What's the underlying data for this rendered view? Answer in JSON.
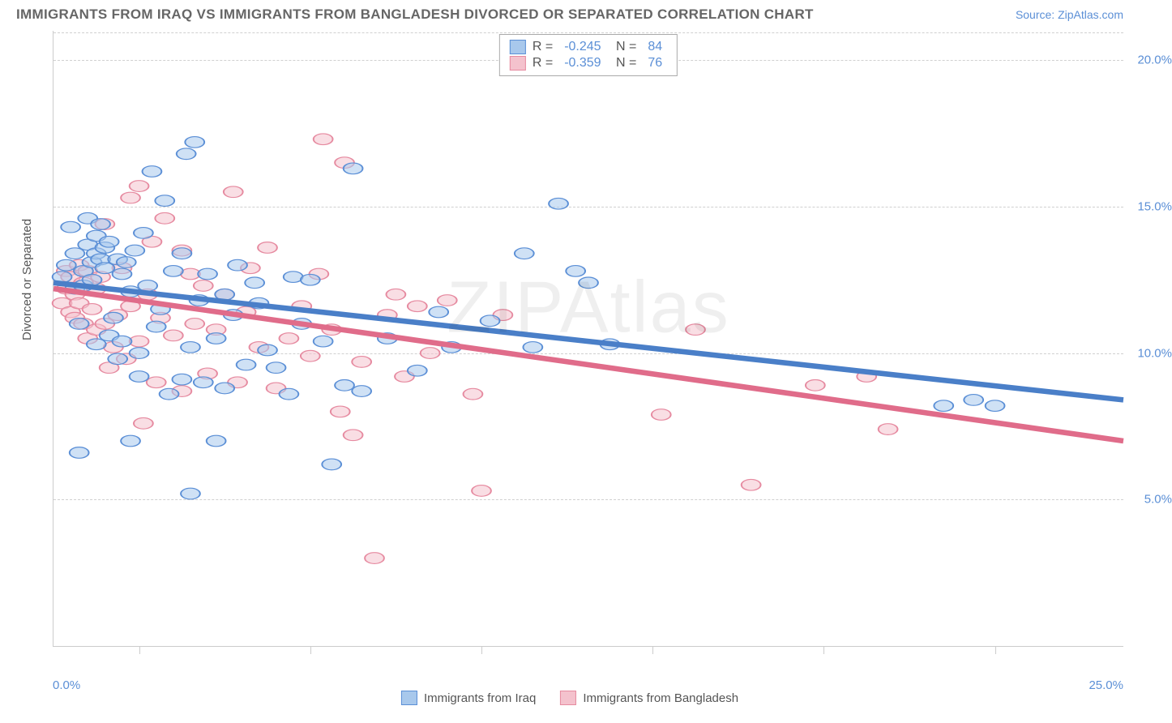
{
  "title": "IMMIGRANTS FROM IRAQ VS IMMIGRANTS FROM BANGLADESH DIVORCED OR SEPARATED CORRELATION CHART",
  "source": "Source: ZipAtlas.com",
  "ylabel": "Divorced or Separated",
  "watermark": "ZIPAtlas",
  "chart": {
    "type": "scatter",
    "xlim": [
      0,
      25
    ],
    "ylim": [
      0,
      21
    ],
    "x_axis_label_left": "0.0%",
    "x_axis_label_right": "25.0%",
    "yticks": [
      5,
      10,
      15,
      20
    ],
    "ytick_labels": [
      "5.0%",
      "10.0%",
      "15.0%",
      "20.0%"
    ],
    "xtick_positions": [
      0.08,
      0.24,
      0.4,
      0.56,
      0.72,
      0.88
    ],
    "background_color": "#ffffff",
    "grid_color": "#d0d0d0",
    "axis_color": "#cccccc",
    "marker_radius": 9,
    "marker_opacity": 0.55,
    "line_width": 2.2,
    "series": [
      {
        "name": "Immigrants from Iraq",
        "R": "-0.245",
        "N": "84",
        "fill_color": "#a8c8ec",
        "stroke_color": "#5b8fd6",
        "line_color": "#4a7fc8",
        "trend": {
          "x1": 0,
          "y1": 12.4,
          "x2": 25,
          "y2": 8.4
        },
        "points": [
          [
            0.2,
            12.6
          ],
          [
            0.3,
            13.0
          ],
          [
            0.4,
            14.3
          ],
          [
            0.5,
            12.2
          ],
          [
            0.5,
            13.4
          ],
          [
            0.6,
            6.6
          ],
          [
            0.6,
            11.0
          ],
          [
            0.7,
            12.8
          ],
          [
            0.7,
            12.3
          ],
          [
            0.8,
            14.6
          ],
          [
            0.8,
            13.7
          ],
          [
            0.9,
            12.5
          ],
          [
            0.9,
            13.1
          ],
          [
            1.0,
            13.4
          ],
          [
            1.0,
            14.0
          ],
          [
            1.0,
            10.3
          ],
          [
            1.1,
            13.2
          ],
          [
            1.1,
            14.4
          ],
          [
            1.2,
            12.9
          ],
          [
            1.2,
            13.6
          ],
          [
            1.3,
            10.6
          ],
          [
            1.3,
            13.8
          ],
          [
            1.4,
            11.2
          ],
          [
            1.5,
            13.2
          ],
          [
            1.5,
            9.8
          ],
          [
            1.6,
            12.7
          ],
          [
            1.6,
            10.4
          ],
          [
            1.7,
            13.1
          ],
          [
            1.8,
            7.0
          ],
          [
            1.8,
            12.1
          ],
          [
            1.9,
            13.5
          ],
          [
            2.0,
            10.0
          ],
          [
            2.0,
            9.2
          ],
          [
            2.1,
            14.1
          ],
          [
            2.2,
            12.3
          ],
          [
            2.3,
            16.2
          ],
          [
            2.4,
            10.9
          ],
          [
            2.5,
            11.5
          ],
          [
            2.6,
            15.2
          ],
          [
            2.7,
            8.6
          ],
          [
            2.8,
            12.8
          ],
          [
            3.0,
            13.4
          ],
          [
            3.0,
            9.1
          ],
          [
            3.1,
            16.8
          ],
          [
            3.2,
            5.2
          ],
          [
            3.2,
            10.2
          ],
          [
            3.3,
            17.2
          ],
          [
            3.4,
            11.8
          ],
          [
            3.5,
            9.0
          ],
          [
            3.6,
            12.7
          ],
          [
            3.8,
            10.5
          ],
          [
            3.8,
            7.0
          ],
          [
            4.0,
            8.8
          ],
          [
            4.0,
            12.0
          ],
          [
            4.2,
            11.3
          ],
          [
            4.3,
            13.0
          ],
          [
            4.5,
            9.6
          ],
          [
            4.7,
            12.4
          ],
          [
            4.8,
            11.7
          ],
          [
            5.0,
            10.1
          ],
          [
            5.2,
            9.5
          ],
          [
            5.5,
            8.6
          ],
          [
            5.6,
            12.6
          ],
          [
            5.8,
            11.0
          ],
          [
            6.0,
            12.5
          ],
          [
            6.3,
            10.4
          ],
          [
            6.5,
            6.2
          ],
          [
            6.8,
            8.9
          ],
          [
            7.0,
            16.3
          ],
          [
            7.2,
            8.7
          ],
          [
            7.8,
            10.5
          ],
          [
            8.5,
            9.4
          ],
          [
            9.0,
            11.4
          ],
          [
            9.3,
            10.2
          ],
          [
            10.2,
            11.1
          ],
          [
            11.0,
            13.4
          ],
          [
            11.2,
            10.2
          ],
          [
            11.8,
            15.1
          ],
          [
            12.2,
            12.8
          ],
          [
            12.5,
            12.4
          ],
          [
            13.0,
            10.3
          ],
          [
            20.8,
            8.2
          ],
          [
            21.5,
            8.4
          ],
          [
            22.0,
            8.2
          ]
        ]
      },
      {
        "name": "Immigrants from Bangladesh",
        "R": "-0.359",
        "N": "76",
        "fill_color": "#f4c2cd",
        "stroke_color": "#e68aa0",
        "line_color": "#e06c8a",
        "trend": {
          "x1": 0,
          "y1": 12.2,
          "x2": 25,
          "y2": 7.0
        },
        "points": [
          [
            0.2,
            11.7
          ],
          [
            0.3,
            12.2
          ],
          [
            0.3,
            12.8
          ],
          [
            0.4,
            11.4
          ],
          [
            0.4,
            12.6
          ],
          [
            0.5,
            12.0
          ],
          [
            0.5,
            11.2
          ],
          [
            0.6,
            13.0
          ],
          [
            0.6,
            11.7
          ],
          [
            0.7,
            12.4
          ],
          [
            0.7,
            11.0
          ],
          [
            0.8,
            12.8
          ],
          [
            0.8,
            10.5
          ],
          [
            0.9,
            11.5
          ],
          [
            1.0,
            12.2
          ],
          [
            1.0,
            10.8
          ],
          [
            1.1,
            12.6
          ],
          [
            1.2,
            11.0
          ],
          [
            1.2,
            14.4
          ],
          [
            1.3,
            9.5
          ],
          [
            1.4,
            10.2
          ],
          [
            1.5,
            11.3
          ],
          [
            1.6,
            12.9
          ],
          [
            1.7,
            9.8
          ],
          [
            1.8,
            11.6
          ],
          [
            1.8,
            15.3
          ],
          [
            2.0,
            10.4
          ],
          [
            2.0,
            15.7
          ],
          [
            2.1,
            7.6
          ],
          [
            2.2,
            12.0
          ],
          [
            2.3,
            13.8
          ],
          [
            2.4,
            9.0
          ],
          [
            2.5,
            11.2
          ],
          [
            2.6,
            14.6
          ],
          [
            2.8,
            10.6
          ],
          [
            3.0,
            8.7
          ],
          [
            3.0,
            13.5
          ],
          [
            3.2,
            12.7
          ],
          [
            3.3,
            11.0
          ],
          [
            3.5,
            12.3
          ],
          [
            3.6,
            9.3
          ],
          [
            3.8,
            10.8
          ],
          [
            4.0,
            12.0
          ],
          [
            4.2,
            15.5
          ],
          [
            4.3,
            9.0
          ],
          [
            4.5,
            11.4
          ],
          [
            4.8,
            10.2
          ],
          [
            5.0,
            13.6
          ],
          [
            5.2,
            8.8
          ],
          [
            5.5,
            10.5
          ],
          [
            5.8,
            11.6
          ],
          [
            6.0,
            9.9
          ],
          [
            6.2,
            12.7
          ],
          [
            6.3,
            17.3
          ],
          [
            6.5,
            10.8
          ],
          [
            6.7,
            8.0
          ],
          [
            6.8,
            16.5
          ],
          [
            7.0,
            7.2
          ],
          [
            7.2,
            9.7
          ],
          [
            7.5,
            3.0
          ],
          [
            7.8,
            11.3
          ],
          [
            8.2,
            9.2
          ],
          [
            8.5,
            11.6
          ],
          [
            8.8,
            10.0
          ],
          [
            9.2,
            11.8
          ],
          [
            9.8,
            8.6
          ],
          [
            10.0,
            5.3
          ],
          [
            10.5,
            11.3
          ],
          [
            14.2,
            7.9
          ],
          [
            15.0,
            10.8
          ],
          [
            16.3,
            5.5
          ],
          [
            17.8,
            8.9
          ],
          [
            19.0,
            9.2
          ],
          [
            19.5,
            7.4
          ],
          [
            8.0,
            12.0
          ],
          [
            4.6,
            12.9
          ]
        ]
      }
    ]
  },
  "legend_labels": {
    "series1": "Immigrants from Iraq",
    "series2": "Immigrants from Bangladesh"
  }
}
